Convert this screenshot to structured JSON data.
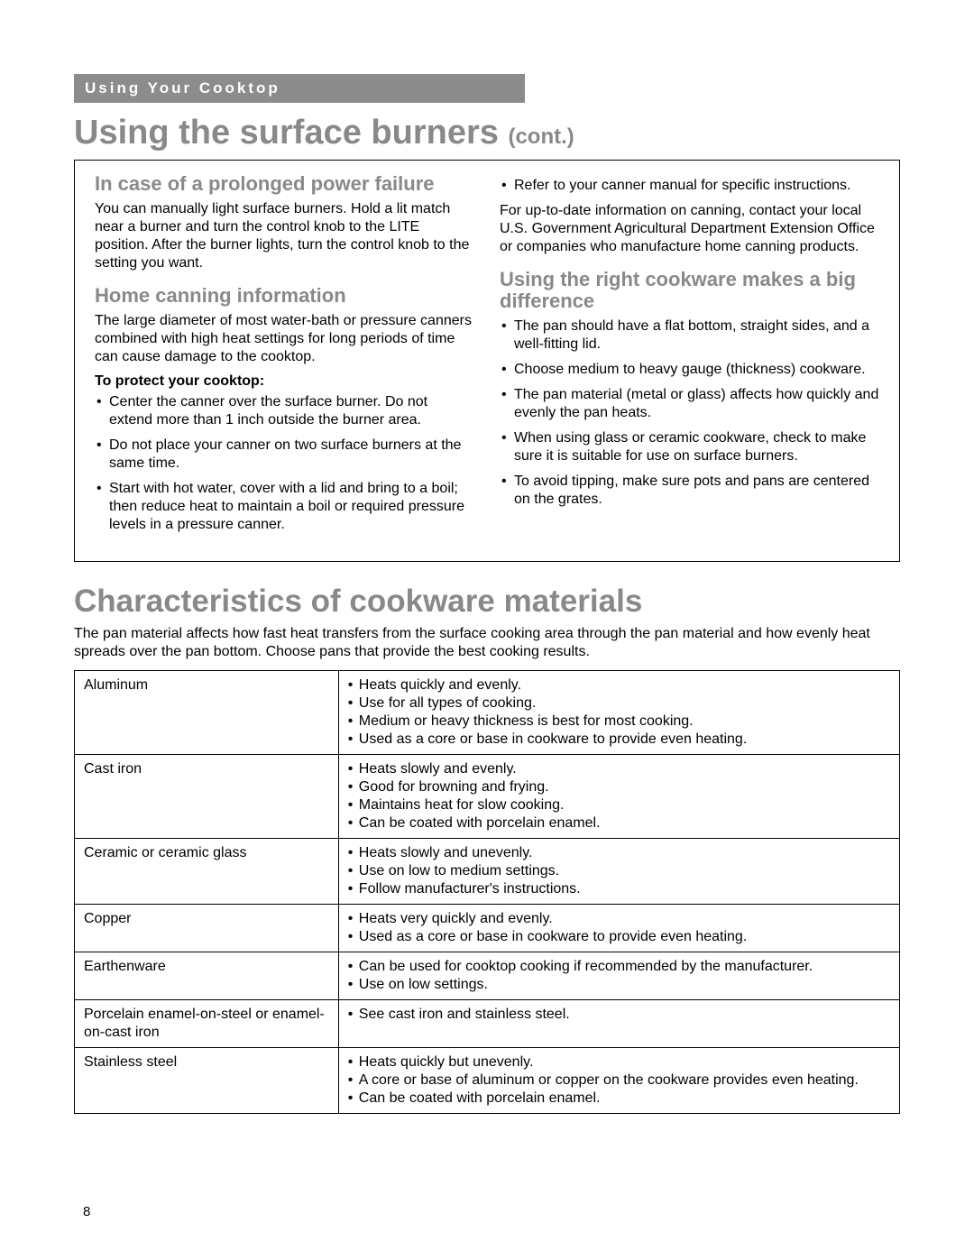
{
  "header_bar": "Using Your Cooktop",
  "title_using": "Using the surface burners",
  "title_cont": "(cont.)",
  "box": {
    "left": {
      "h_power": "In case of a prolonged power failure",
      "p_power": "You can manually light surface burners. Hold a lit match near a burner and turn the control knob to the LITE position. After the burner lights, turn the control knob to the setting you want.",
      "h_canning": "Home canning information",
      "p_canning": "The large diameter of most water-bath or pressure canners combined with high heat settings for long periods of time can cause damage to the cooktop.",
      "protect_label": "To protect your cooktop:",
      "protect_items": [
        "Center the canner over the surface burner. Do not extend more than 1 inch outside the burner area.",
        "Do not place your canner on two surface burners at the same time.",
        "Start with hot water, cover with a lid and bring to a boil; then reduce heat to maintain a boil or required pressure levels in a pressure canner."
      ]
    },
    "right": {
      "refer_item": "Refer to your canner manual for specific instructions.",
      "p_contact": "For up-to-date information on canning, contact your local U.S. Government Agricultural Department Extension Office or companies who manufacture home canning products.",
      "h_cookware": "Using the right cookware makes a big difference",
      "cookware_items": [
        "The pan should have a flat bottom, straight sides, and a well-fitting lid.",
        "Choose medium to heavy gauge (thickness) cookware.",
        "The pan material (metal or glass) affects how quickly and evenly the pan heats.",
        "When using glass or ceramic cookware, check to make sure it is suitable for use on surface burners.",
        "To avoid tipping, make sure pots and pans are centered on the grates."
      ]
    }
  },
  "chars": {
    "title": "Characteristics of cookware materials",
    "intro": "The pan material affects how fast heat transfers from the surface cooking area through the pan material and how evenly heat spreads over the pan bottom. Choose pans that provide the best cooking results.",
    "rows": [
      {
        "material": "Aluminum",
        "points": [
          "Heats quickly and evenly.",
          "Use for all types of cooking.",
          "Medium or heavy thickness is best for most cooking.",
          "Used as a core or base in cookware to provide even heating."
        ]
      },
      {
        "material": "Cast iron",
        "points": [
          "Heats slowly and evenly.",
          "Good for browning and frying.",
          "Maintains heat for slow cooking.",
          "Can be coated with porcelain enamel."
        ]
      },
      {
        "material": "Ceramic or ceramic glass",
        "points": [
          "Heats slowly and unevenly.",
          "Use on low to medium settings.",
          "Follow manufacturer's instructions."
        ]
      },
      {
        "material": "Copper",
        "points": [
          "Heats very quickly and evenly.",
          "Used as a core or base in cookware to provide even heating."
        ]
      },
      {
        "material": "Earthenware",
        "points": [
          "Can be used for cooktop cooking if recommended by the manufacturer.",
          "Use on low settings."
        ]
      },
      {
        "material": "Porcelain enamel-on-steel or enamel-on-cast iron",
        "points": [
          "See cast iron and stainless steel."
        ]
      },
      {
        "material": "Stainless steel",
        "points": [
          "Heats quickly but unevenly.",
          "A core or base of aluminum or copper on the cookware provides even heating.",
          "Can be coated with porcelain enamel."
        ]
      }
    ]
  },
  "page_number": "8",
  "colors": {
    "header_bg": "#8c8c8c",
    "heading_color": "#898989",
    "text_color": "#000000",
    "background": "#ffffff"
  }
}
